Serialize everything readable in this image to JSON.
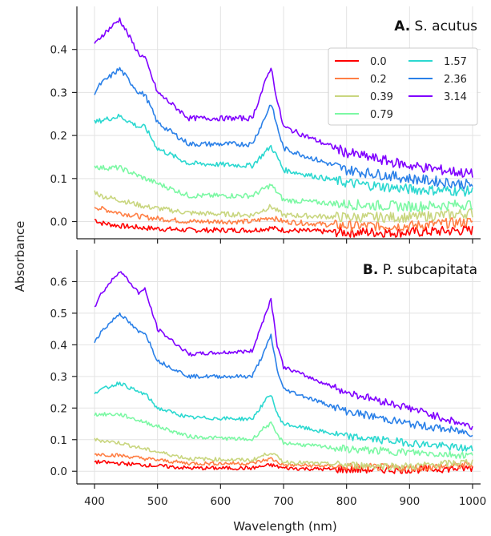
{
  "figure": {
    "xlabel": "Wavelength (nm)",
    "ylabel": "Absorbance"
  },
  "chart_data": [
    {
      "type": "line",
      "title_letter": "A.",
      "title": "S. acutus",
      "xlim": [
        400,
        1000
      ],
      "ylim": [
        -0.04,
        0.5
      ],
      "xticks": [
        400,
        500,
        600,
        700,
        800,
        900,
        1000
      ],
      "yticks": [
        0.0,
        0.1,
        0.2,
        0.3,
        0.4
      ],
      "yticklabels": [
        "0.0",
        "0.1",
        "0.2",
        "0.3",
        "0.4"
      ],
      "grid": true,
      "legend_position": "upper-right",
      "series": [
        {
          "name": "0.0",
          "color": "#ff0000",
          "x": [
            400,
            410,
            440,
            480,
            550,
            650,
            680,
            700,
            800,
            900,
            1000
          ],
          "y": [
            0.005,
            -0.003,
            -0.01,
            -0.015,
            -0.02,
            -0.02,
            -0.015,
            -0.02,
            -0.025,
            -0.025,
            -0.02
          ]
        },
        {
          "name": "0.2",
          "color": "#ff7f45",
          "x": [
            400,
            410,
            440,
            480,
            550,
            650,
            680,
            700,
            800,
            900,
            1000
          ],
          "y": [
            0.035,
            0.03,
            0.02,
            0.01,
            0.0,
            0.0,
            0.01,
            0.0,
            -0.01,
            -0.01,
            0.0
          ]
        },
        {
          "name": "0.39",
          "color": "#c9d67f",
          "x": [
            400,
            410,
            440,
            480,
            550,
            650,
            680,
            700,
            800,
            900,
            1000
          ],
          "y": [
            0.07,
            0.06,
            0.05,
            0.035,
            0.02,
            0.015,
            0.035,
            0.015,
            0.01,
            0.01,
            0.02
          ]
        },
        {
          "name": "0.79",
          "color": "#7cf8a4",
          "x": [
            400,
            410,
            440,
            480,
            550,
            650,
            680,
            700,
            800,
            900,
            1000
          ],
          "y": [
            0.13,
            0.125,
            0.125,
            0.1,
            0.06,
            0.06,
            0.085,
            0.05,
            0.04,
            0.035,
            0.04
          ]
        },
        {
          "name": "1.57",
          "color": "#2bd8d0",
          "x": [
            400,
            410,
            440,
            470,
            480,
            500,
            550,
            650,
            670,
            680,
            690,
            700,
            800,
            900,
            1000
          ],
          "y": [
            0.23,
            0.235,
            0.245,
            0.22,
            0.22,
            0.17,
            0.135,
            0.13,
            0.16,
            0.175,
            0.15,
            0.12,
            0.09,
            0.075,
            0.07
          ]
        },
        {
          "name": "2.36",
          "color": "#2a80e8",
          "x": [
            400,
            410,
            440,
            470,
            480,
            500,
            550,
            650,
            670,
            680,
            690,
            700,
            800,
            900,
            1000
          ],
          "y": [
            0.3,
            0.32,
            0.355,
            0.3,
            0.295,
            0.23,
            0.18,
            0.18,
            0.24,
            0.275,
            0.22,
            0.17,
            0.12,
            0.1,
            0.085
          ]
        },
        {
          "name": "3.14",
          "color": "#8000ff",
          "x": [
            400,
            410,
            440,
            470,
            480,
            500,
            550,
            650,
            670,
            680,
            690,
            700,
            800,
            900,
            1000
          ],
          "y": [
            0.41,
            0.43,
            0.47,
            0.39,
            0.38,
            0.3,
            0.24,
            0.24,
            0.32,
            0.36,
            0.28,
            0.22,
            0.16,
            0.13,
            0.11
          ]
        }
      ]
    },
    {
      "type": "line",
      "title_letter": "B.",
      "title": "P. subcapitata",
      "xlim": [
        400,
        1000
      ],
      "ylim": [
        -0.04,
        0.7
      ],
      "xticks": [
        400,
        500,
        600,
        700,
        800,
        900,
        1000
      ],
      "xticklabels": [
        "400",
        "500",
        "600",
        "700",
        "800",
        "900",
        "1000"
      ],
      "yticks": [
        0.0,
        0.1,
        0.2,
        0.3,
        0.4,
        0.5,
        0.6
      ],
      "yticklabels": [
        "0.0",
        "0.1",
        "0.2",
        "0.3",
        "0.4",
        "0.5",
        "0.6"
      ],
      "grid": true,
      "series": [
        {
          "name": "0.0",
          "color": "#ff0000",
          "x": [
            400,
            440,
            480,
            550,
            650,
            680,
            700,
            800,
            900,
            1000
          ],
          "y": [
            0.03,
            0.025,
            0.02,
            0.01,
            0.01,
            0.02,
            0.01,
            0.005,
            0.005,
            0.01
          ]
        },
        {
          "name": "0.2",
          "color": "#ff7f45",
          "x": [
            400,
            440,
            480,
            550,
            650,
            680,
            700,
            800,
            900,
            1000
          ],
          "y": [
            0.055,
            0.05,
            0.04,
            0.025,
            0.025,
            0.04,
            0.02,
            0.015,
            0.01,
            0.02
          ]
        },
        {
          "name": "0.39",
          "color": "#c9d67f",
          "x": [
            400,
            440,
            480,
            550,
            650,
            680,
            700,
            800,
            900,
            1000
          ],
          "y": [
            0.1,
            0.09,
            0.07,
            0.04,
            0.035,
            0.06,
            0.03,
            0.02,
            0.015,
            0.03
          ]
        },
        {
          "name": "0.79",
          "color": "#7cf8a4",
          "x": [
            400,
            440,
            480,
            550,
            650,
            670,
            680,
            690,
            700,
            800,
            900,
            1000
          ],
          "y": [
            0.18,
            0.18,
            0.155,
            0.11,
            0.1,
            0.14,
            0.15,
            0.115,
            0.09,
            0.07,
            0.06,
            0.05
          ]
        },
        {
          "name": "1.57",
          "color": "#2bd8d0",
          "x": [
            400,
            440,
            470,
            480,
            500,
            550,
            650,
            670,
            680,
            690,
            700,
            800,
            900,
            1000
          ],
          "y": [
            0.25,
            0.28,
            0.25,
            0.245,
            0.2,
            0.17,
            0.165,
            0.22,
            0.245,
            0.18,
            0.15,
            0.11,
            0.09,
            0.07
          ]
        },
        {
          "name": "2.36",
          "color": "#2a80e8",
          "x": [
            400,
            410,
            440,
            470,
            480,
            500,
            550,
            650,
            670,
            680,
            690,
            700,
            800,
            900,
            1000
          ],
          "y": [
            0.41,
            0.44,
            0.5,
            0.44,
            0.44,
            0.35,
            0.3,
            0.3,
            0.38,
            0.43,
            0.32,
            0.26,
            0.19,
            0.15,
            0.12
          ]
        },
        {
          "name": "3.14",
          "color": "#8000ff",
          "x": [
            400,
            410,
            440,
            470,
            480,
            500,
            550,
            650,
            670,
            680,
            690,
            700,
            800,
            900,
            1000
          ],
          "y": [
            0.52,
            0.56,
            0.635,
            0.565,
            0.575,
            0.45,
            0.37,
            0.38,
            0.49,
            0.545,
            0.4,
            0.33,
            0.25,
            0.2,
            0.14
          ]
        }
      ]
    }
  ]
}
